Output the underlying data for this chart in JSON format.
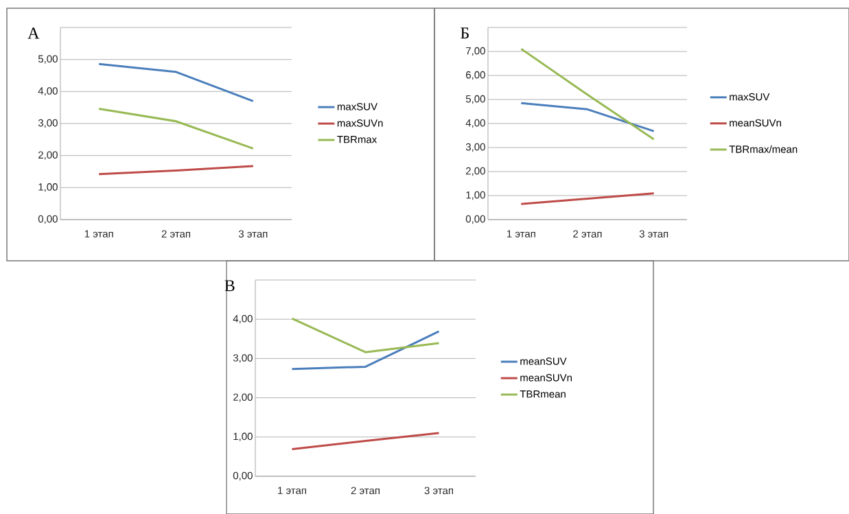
{
  "chart_data": [
    {
      "type": "line",
      "title": "А",
      "categories": [
        "1 этап",
        "2 этап",
        "3 этап"
      ],
      "series": [
        {
          "name": "maxSUV",
          "color": "#4a7ebb",
          "values": [
            4.86,
            4.61,
            3.7
          ]
        },
        {
          "name": "maxSUVn",
          "color": "#be4b48",
          "values": [
            1.42,
            1.53,
            1.67
          ]
        },
        {
          "name": "TBRmax",
          "color": "#98b954",
          "values": [
            3.46,
            3.07,
            2.22
          ]
        }
      ],
      "ylim": [
        0,
        6
      ],
      "yticks": [
        {
          "value": 0,
          "label": "0,00"
        },
        {
          "value": 1,
          "label": "1,00"
        },
        {
          "value": 2,
          "label": "2,00"
        },
        {
          "value": 3,
          "label": "3,00"
        },
        {
          "value": 4,
          "label": "4,00"
        },
        {
          "value": 5,
          "label": "5,00"
        },
        {
          "value": 6,
          "label": null
        }
      ],
      "grid": "y",
      "legend": "right"
    },
    {
      "type": "line",
      "title": "Б",
      "categories": [
        "1 этап",
        "2 этап",
        "3 этап"
      ],
      "series": [
        {
          "name": "maxSUV",
          "color": "#4a7ebb",
          "values": [
            4.85,
            4.59,
            3.68
          ]
        },
        {
          "name": "meanSUVn",
          "color": "#be4b48",
          "values": [
            0.65,
            0.87,
            1.09
          ]
        },
        {
          "name": "TBRmax/mean",
          "color": "#98b954",
          "values": [
            7.11,
            5.2,
            3.34
          ]
        }
      ],
      "ylim": [
        0,
        8
      ],
      "yticks": [
        {
          "value": 0,
          "label": "0,00"
        },
        {
          "value": 1,
          "label": "1,00"
        },
        {
          "value": 2,
          "label": "2,00"
        },
        {
          "value": 3,
          "label": "3,00"
        },
        {
          "value": 4,
          "label": "4,00"
        },
        {
          "value": 5,
          "label": "5,00"
        },
        {
          "value": 6,
          "label": "6,00"
        },
        {
          "value": 7,
          "label": "7,00"
        },
        {
          "value": 8,
          "label": null
        }
      ],
      "grid": "y",
      "legend": "right"
    },
    {
      "type": "line",
      "title": "В",
      "categories": [
        "1 этап",
        "2 этап",
        "3 этап"
      ],
      "series": [
        {
          "name": "meanSUV",
          "color": "#4a7ebb",
          "values": [
            2.73,
            2.79,
            3.69
          ]
        },
        {
          "name": "meanSUVn",
          "color": "#be4b48",
          "values": [
            0.69,
            0.9,
            1.1
          ]
        },
        {
          "name": "TBRmean",
          "color": "#98b954",
          "values": [
            4.02,
            3.16,
            3.39
          ]
        }
      ],
      "ylim": [
        0,
        5
      ],
      "yticks": [
        {
          "value": 0,
          "label": "0,00"
        },
        {
          "value": 1,
          "label": "1,00"
        },
        {
          "value": 2,
          "label": "2,00"
        },
        {
          "value": 3,
          "label": "3,00"
        },
        {
          "value": 4,
          "label": "4,00"
        },
        {
          "value": 5,
          "label": null
        }
      ],
      "grid": "y",
      "legend": "right"
    }
  ]
}
